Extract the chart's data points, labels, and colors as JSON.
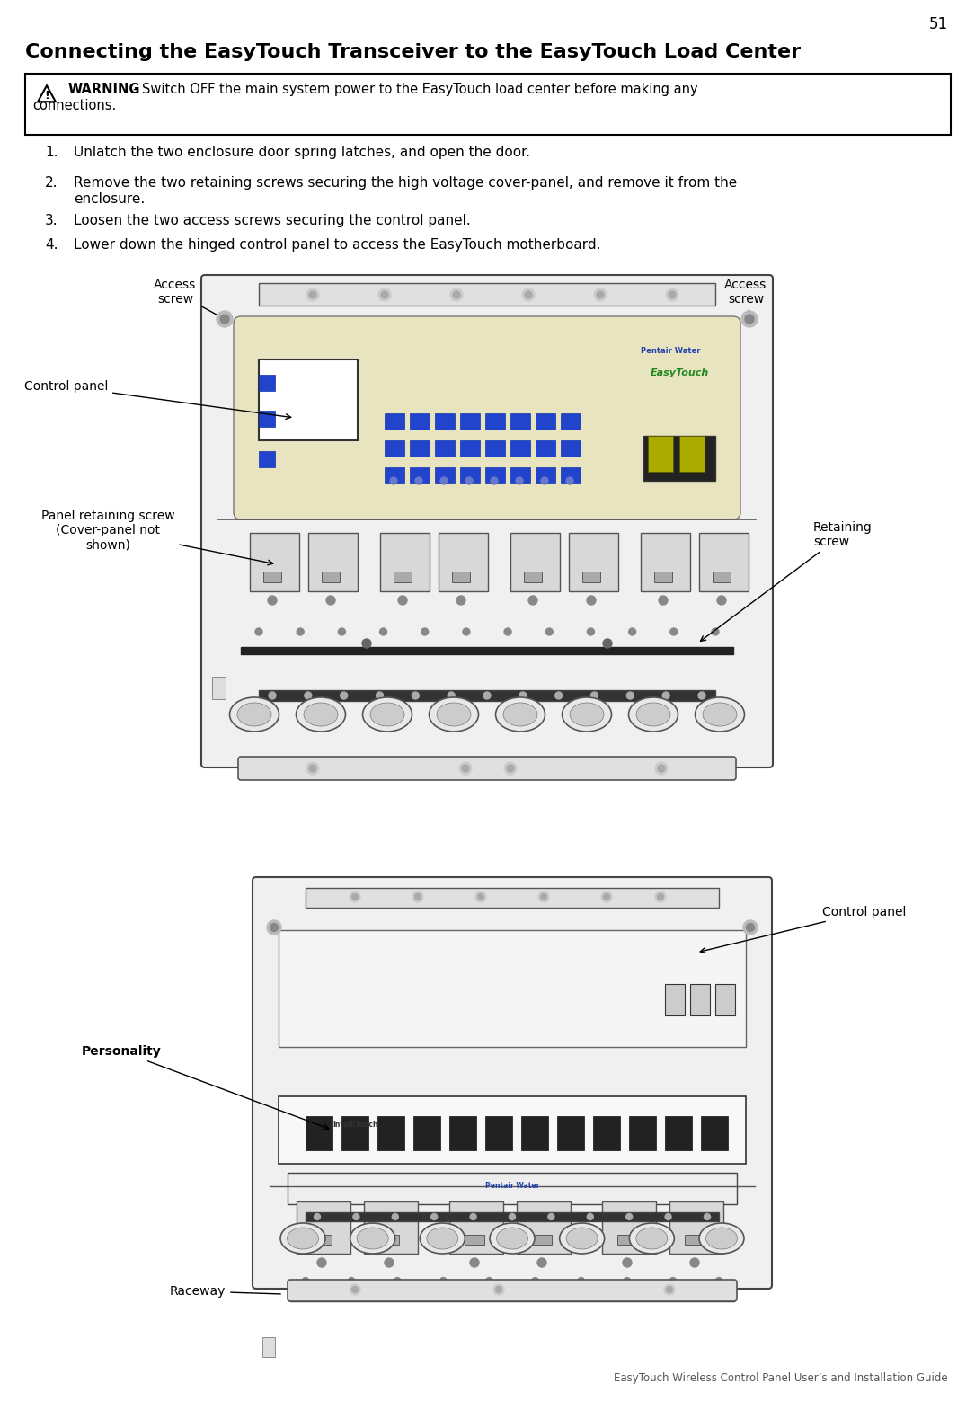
{
  "page_number": "51",
  "title": "Connecting the EasyTouch Transceiver to the EasyTouch Load Center",
  "warning_bold": "WARNING",
  "warning_rest": " - Switch OFF the main system power to the EasyTouch load center before making any\nconnections.",
  "steps": [
    "Unlatch the two enclosure door spring latches, and open the door.",
    "Remove the two retaining screws securing the high voltage cover-panel, and remove it from the\n    enclosure.",
    "Loosen the two access screws securing the control panel.",
    "Lower down the hinged control panel to access the EasyTouch motherboard."
  ],
  "footer": "EasyTouch Wireless Control Panel User’s and Installation Guide",
  "bg_color": "#ffffff",
  "text_color": "#000000",
  "gray_light": "#e8e8e8",
  "gray_med": "#cccccc",
  "gray_dark": "#999999",
  "beige": "#e8e4c8",
  "enclosure_color": "#f5f5f5",
  "enclosure_edge": "#555555",
  "blue_btn": "#3355bb"
}
